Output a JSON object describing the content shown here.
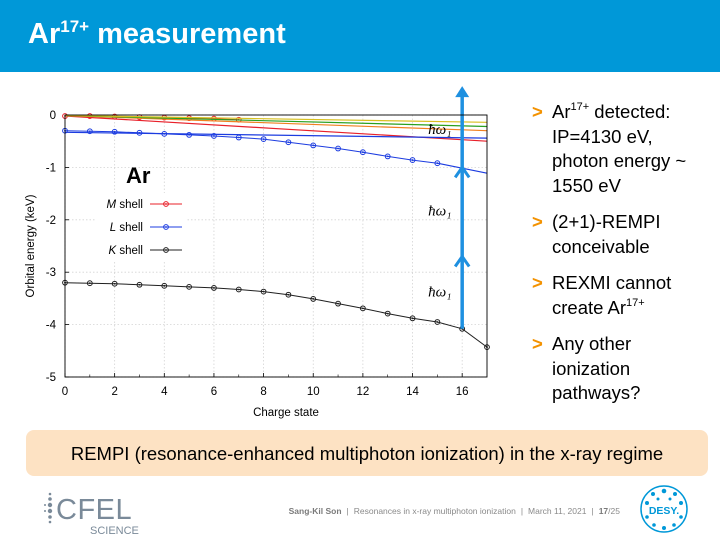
{
  "header": {
    "title_main": "Ar",
    "title_sup": "17+",
    "title_rest": " measurement"
  },
  "chart_data": {
    "type": "line",
    "title": "",
    "inset_label": "Ar",
    "xlabel": "Charge state",
    "ylabel": "Orbital energy (keV)",
    "xlim": [
      0,
      17
    ],
    "ylim": [
      -5,
      0
    ],
    "xticks": [
      "0",
      "2",
      "4",
      "6",
      "8",
      "10",
      "12",
      "14",
      "16"
    ],
    "yticks": [
      "0",
      "-1",
      "-2",
      "-3",
      "-4",
      "-5"
    ],
    "grid": true,
    "legend_position": "left",
    "series": [
      {
        "name": "M shell",
        "italic": "M",
        "rest": " shell",
        "color": "#e8202a",
        "marker": true,
        "x": [
          0,
          1,
          2,
          3,
          4,
          5,
          6,
          7
        ],
        "y": [
          -0.02,
          -0.02,
          -0.03,
          -0.04,
          -0.05,
          -0.06,
          -0.07,
          -0.09
        ]
      },
      {
        "name": "L shell",
        "italic": "L",
        "rest": " shell",
        "color": "#1c3ce0",
        "marker": true,
        "x": [
          0,
          1,
          2,
          3,
          4,
          5,
          6,
          7,
          8,
          9,
          10,
          11,
          12,
          13,
          14,
          15
        ],
        "y": [
          -0.3,
          -0.31,
          -0.32,
          -0.34,
          -0.36,
          -0.38,
          -0.4,
          -0.43,
          -0.46,
          -0.52,
          -0.58,
          -0.64,
          -0.71,
          -0.79,
          -0.86,
          -0.92
        ]
      },
      {
        "name": "K shell",
        "italic": "K",
        "rest": " shell",
        "color": "#202020",
        "marker": true,
        "x": [
          0,
          1,
          2,
          3,
          4,
          5,
          6,
          7,
          8,
          9,
          10,
          11,
          12,
          13,
          14,
          15,
          16,
          17
        ],
        "y": [
          -3.2,
          -3.21,
          -3.22,
          -3.24,
          -3.26,
          -3.28,
          -3.3,
          -3.33,
          -3.37,
          -3.43,
          -3.51,
          -3.6,
          -3.69,
          -3.79,
          -3.88,
          -3.95,
          -4.08,
          -4.43
        ]
      },
      {
        "color": "#e8202a",
        "marker": false,
        "x": [
          0,
          17
        ],
        "y": [
          -0.02,
          -0.5
        ]
      },
      {
        "color": "#f08020",
        "marker": false,
        "x": [
          0,
          17
        ],
        "y": [
          -0.01,
          -0.3
        ]
      },
      {
        "color": "#2aa020",
        "marker": false,
        "x": [
          0,
          17
        ],
        "y": [
          -0.01,
          -0.22
        ]
      },
      {
        "color": "#d8c020",
        "marker": false,
        "x": [
          0,
          17
        ],
        "y": [
          -0.01,
          -0.14
        ]
      },
      {
        "color": "#1c3ce0",
        "marker": false,
        "x": [
          15,
          17
        ],
        "y": [
          -0.92,
          -1.11
        ]
      },
      {
        "color": "#1c3ce0",
        "marker": false,
        "x": [
          0,
          17
        ],
        "y": [
          -0.33,
          -0.44
        ]
      }
    ],
    "arrow": {
      "x": 16,
      "y_from": -4.08,
      "y_to": 0.55,
      "color": "#1e90e0",
      "heads_at": [
        -1.0,
        -2.7
      ]
    },
    "photon_label": "ħω₁",
    "photon_label_y": [
      -0.25,
      -1.8,
      -3.35
    ]
  },
  "bullets": [
    {
      "marker": ">",
      "parts": [
        {
          "t": "Ar"
        },
        {
          "t": "17+",
          "sup": true
        },
        {
          "t": " detected: IP=4130 eV, photon energy ~ 1550 eV"
        }
      ]
    },
    {
      "marker": ">",
      "parts": [
        {
          "t": "(2+1)-REMPI conceivable"
        }
      ]
    },
    {
      "marker": ">",
      "parts": [
        {
          "t": "REXMI cannot create Ar"
        },
        {
          "t": "17+",
          "sup": true
        }
      ]
    },
    {
      "marker": ">",
      "parts": [
        {
          "t": "Any other ionization pathways?"
        }
      ]
    }
  ],
  "banner": {
    "text": "REMPI (resonance-enhanced multiphoton ionization) in the x-ray regime"
  },
  "footer": {
    "author": "Sang-Kil Son",
    "talk": "Resonances in x-ray multiphoton ionization",
    "date": "March 11, 2021",
    "page_current": "17",
    "page_total": "25",
    "sep": "|",
    "page_sep": "/"
  },
  "logos": {
    "cfel_main": "CFEL",
    "cfel_sub": "SCIENCE",
    "desy": "DESY."
  },
  "colors": {
    "header_bg": "#0098d8",
    "accent": "#f39200",
    "banner_bg": "#fde2c3"
  }
}
